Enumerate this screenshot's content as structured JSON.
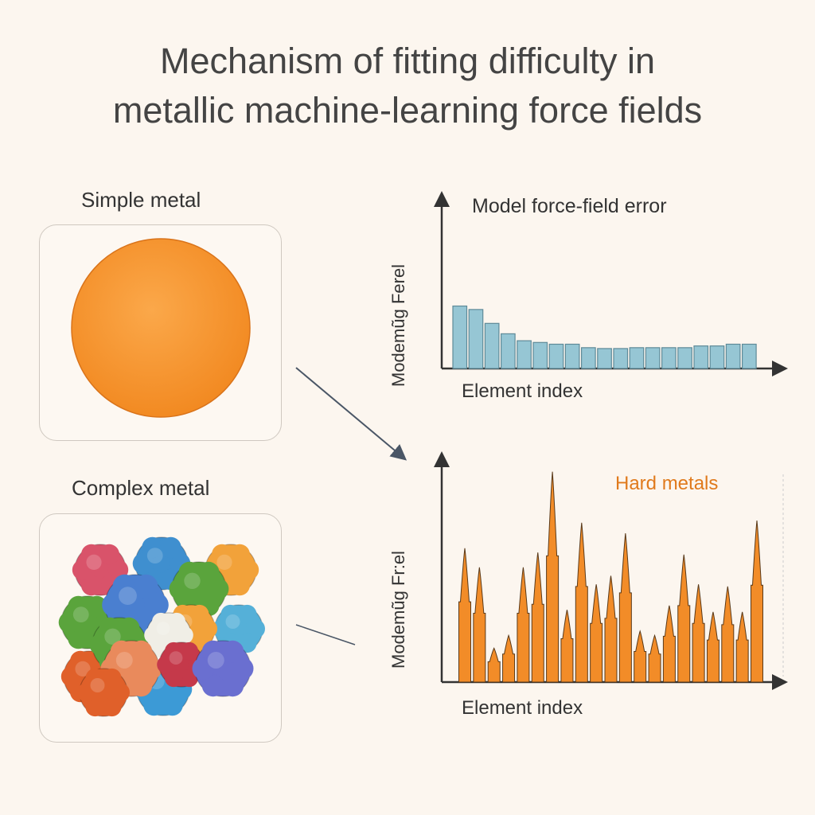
{
  "title_line1": "Mechanism of fitting difficulty in",
  "title_line2": "metallic machine-learning force fields",
  "left": {
    "simple_label": "Simple metal",
    "complex_label": "Complex metal"
  },
  "colors": {
    "simple_sphere": "#f7962f",
    "top_bars": "#96c6d4",
    "bottom_peaks": "#f28c28",
    "hard_label": "#e07a1c",
    "cluster": [
      "#d9536a",
      "#3f8fcf",
      "#5aa43c",
      "#f2a23a",
      "#4a7fd0",
      "#f0eee6",
      "#e98a5c",
      "#c5394a",
      "#6a6fd0",
      "#e0602a",
      "#3c9ad6",
      "#55b0d8"
    ]
  },
  "chart_data": [
    {
      "type": "bar",
      "title": "Model force-field error",
      "xlabel": "Element index",
      "ylabel": "Modemũg Ferel",
      "ylim": [
        0,
        100
      ],
      "values": [
        36,
        34,
        26,
        20,
        16,
        15,
        14,
        14,
        12,
        11.5,
        11.5,
        12,
        12,
        12,
        12,
        13,
        13,
        14,
        14
      ]
    },
    {
      "type": "bar",
      "title": "",
      "annotation": "Hard metals",
      "xlabel": "Element index",
      "ylabel": "Modemũg Fr:el",
      "ylim": [
        0,
        100
      ],
      "values": [
        63,
        54,
        16,
        22,
        54,
        61,
        99,
        34,
        75,
        46,
        50,
        70,
        24,
        22,
        36,
        60,
        46,
        33,
        45,
        33,
        76
      ]
    }
  ]
}
